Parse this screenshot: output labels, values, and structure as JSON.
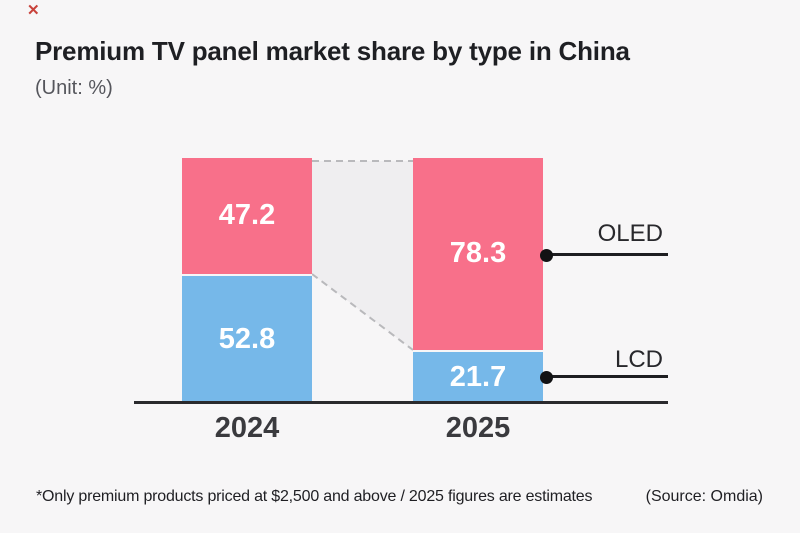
{
  "decoration": {
    "broken_image_glyph": "✕"
  },
  "chart_data": {
    "type": "bar",
    "variant": "100-percent-stacked-columns-with-flow-band",
    "title": "Premium TV panel market share by type in China",
    "unit_label": "(Unit: %)",
    "unit": "%",
    "categories": [
      "2024",
      "2025"
    ],
    "series": [
      {
        "name": "OLED",
        "color": "#F8708A",
        "values": [
          47.2,
          78.3
        ]
      },
      {
        "name": "LCD",
        "color": "#76B8E9",
        "values": [
          52.8,
          21.7
        ]
      }
    ],
    "ylim": [
      0,
      100
    ],
    "grid": false,
    "legend_position": "right",
    "value_label_color": "#FFFFFF",
    "connector_fill": "#EFEEF0",
    "connector_dash_color": "#B9B9BC",
    "axis_line_color": "#2A2A2D",
    "note": "*Only premium products priced at $2,500 and above / 2025 figures are estimates",
    "source": "(Source: Omdia)"
  }
}
